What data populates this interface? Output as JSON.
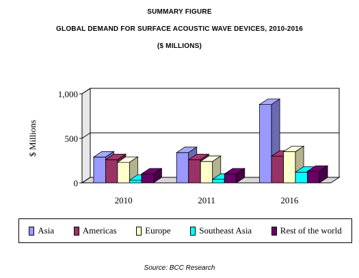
{
  "header": {
    "line1": "SUMMARY FIGURE",
    "line2": "GLOBAL DEMAND FOR SURFACE ACOUSTIC WAVE DEVICES, 2010-2016",
    "line3": "($ MILLIONS)"
  },
  "source": "Source: BCC Research",
  "chart_data": {
    "type": "bar",
    "style": "3d-clustered",
    "categories": [
      "2010",
      "2011",
      "2016"
    ],
    "series": [
      {
        "name": "Asia",
        "values": [
          290,
          340,
          880
        ],
        "color": "#9999ff"
      },
      {
        "name": "Americas",
        "values": [
          260,
          260,
          300
        ],
        "color": "#993366"
      },
      {
        "name": "Europe",
        "values": [
          230,
          240,
          350
        ],
        "color": "#ffffcc"
      },
      {
        "name": "Southeast Asia",
        "values": [
          30,
          40,
          120
        ],
        "color": "#00ffff"
      },
      {
        "name": "Rest of the world",
        "values": [
          100,
          100,
          130
        ],
        "color": "#660066"
      }
    ],
    "ylabel": "$ Millions",
    "ylim": [
      0,
      1000
    ],
    "yticks": [
      "0",
      "500",
      "1,000"
    ],
    "grid": true,
    "legend_position": "bottom"
  }
}
